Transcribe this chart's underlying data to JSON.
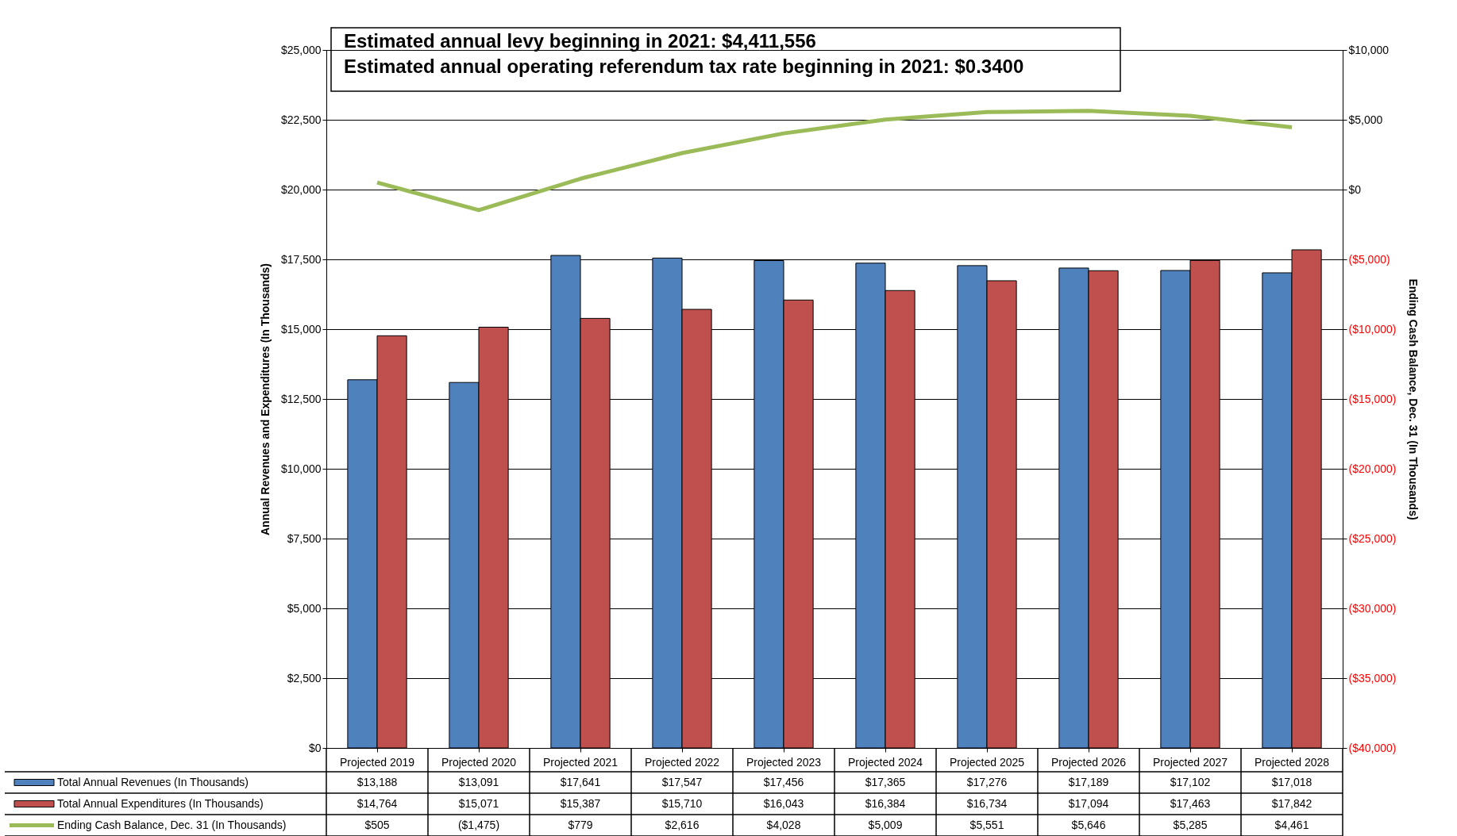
{
  "chart_data": {
    "type": "bar",
    "ylabel": "Annual Revenues and Expenditures (In Thousands)",
    "y2label": "Ending Cash Balance, Dec. 31 (In Thousands)",
    "annotations": [
      "Estimated annual levy beginning in 2021: $4,411,556",
      "Estimated annual operating referendum tax rate beginning in 2021: $0.3400"
    ],
    "categories": [
      "Projected 2019",
      "Projected 2020",
      "Projected 2021",
      "Projected 2022",
      "Projected 2023",
      "Projected 2024",
      "Projected 2025",
      "Projected 2026",
      "Projected 2027",
      "Projected 2028"
    ],
    "series": [
      {
        "name": "Total Annual Revenues (In Thousands)",
        "color": "#4f81bd",
        "values": [
          13188,
          13091,
          17641,
          17547,
          17456,
          17365,
          17276,
          17189,
          17102,
          17018
        ],
        "value_labels": [
          "$13,188",
          "$13,091",
          "$17,641",
          "$17,547",
          "$17,456",
          "$17,365",
          "$17,276",
          "$17,189",
          "$17,102",
          "$17,018"
        ]
      },
      {
        "name": "Total Annual Expenditures (In Thousands)",
        "color": "#c0504d",
        "values": [
          14764,
          15071,
          15387,
          15710,
          16043,
          16384,
          16734,
          17094,
          17463,
          17842
        ],
        "value_labels": [
          "$14,764",
          "$15,071",
          "$15,387",
          "$15,710",
          "$16,043",
          "$16,384",
          "$16,734",
          "$17,094",
          "$17,463",
          "$17,842"
        ]
      },
      {
        "name": "Ending Cash Balance, Dec. 31 (In Thousands)",
        "type": "line",
        "axis": "y2",
        "color": "#9bbb59",
        "values": [
          505,
          -1475,
          779,
          2616,
          4028,
          5009,
          5551,
          5646,
          5285,
          4461
        ],
        "value_labels": [
          "$505",
          "($1,475)",
          "$779",
          "$2,616",
          "$4,028",
          "$5,009",
          "$5,551",
          "$5,646",
          "$5,285",
          "$4,461"
        ]
      }
    ],
    "ylim": [
      0,
      25000
    ],
    "yticks": [
      {
        "value": 0,
        "label": "$0"
      },
      {
        "value": 2500,
        "label": "$2,500"
      },
      {
        "value": 5000,
        "label": "$5,000"
      },
      {
        "value": 7500,
        "label": "$7,500"
      },
      {
        "value": 10000,
        "label": "$10,000"
      },
      {
        "value": 12500,
        "label": "$12,500"
      },
      {
        "value": 15000,
        "label": "$15,000"
      },
      {
        "value": 17500,
        "label": "$17,500"
      },
      {
        "value": 20000,
        "label": "$20,000"
      },
      {
        "value": 22500,
        "label": "$22,500"
      },
      {
        "value": 25000,
        "label": "$25,000"
      }
    ],
    "y2lim": [
      -40000,
      10000
    ],
    "y2ticks": [
      {
        "value": -40000,
        "label": "($40,000)"
      },
      {
        "value": -35000,
        "label": "($35,000)"
      },
      {
        "value": -30000,
        "label": "($30,000)"
      },
      {
        "value": -25000,
        "label": "($25,000)"
      },
      {
        "value": -20000,
        "label": "($20,000)"
      },
      {
        "value": -15000,
        "label": "($15,000)"
      },
      {
        "value": -10000,
        "label": "($10,000)"
      },
      {
        "value": -5000,
        "label": "($5,000)"
      },
      {
        "value": 0,
        "label": "$0"
      },
      {
        "value": 5000,
        "label": "$5,000"
      },
      {
        "value": 10000,
        "label": "$10,000"
      }
    ],
    "grid": "y",
    "legend": "bottom",
    "line_style": "solid",
    "marker": "none"
  }
}
